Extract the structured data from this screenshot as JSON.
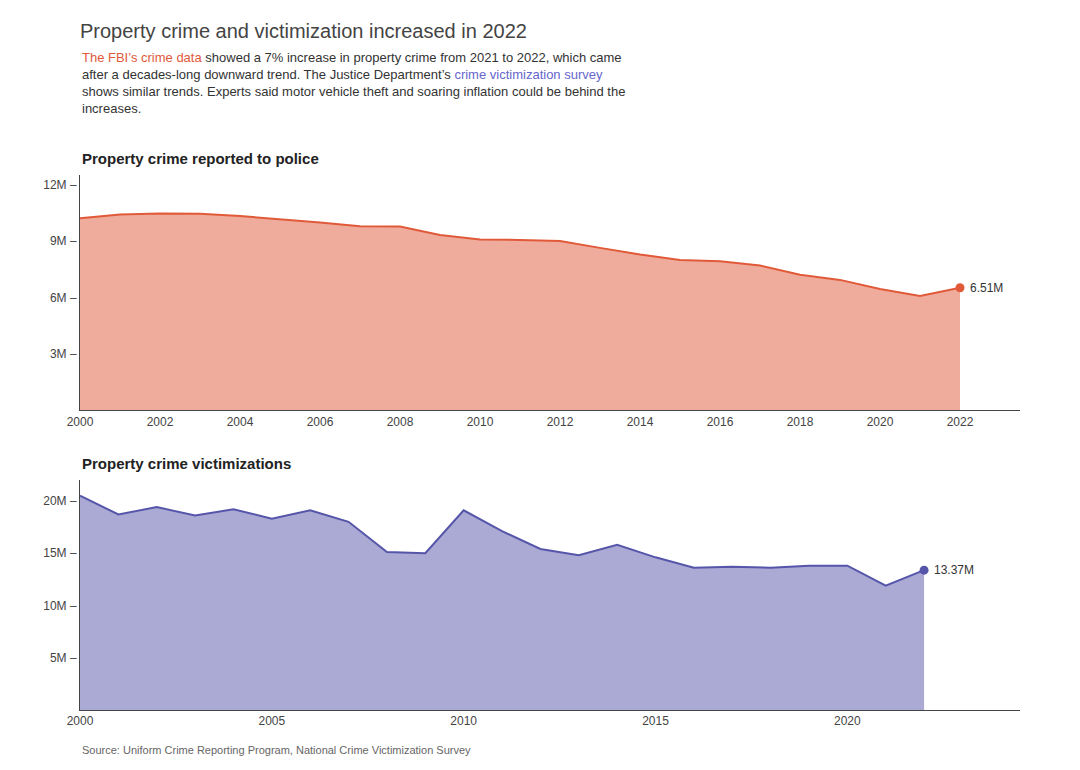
{
  "title": "Property crime and victimization increased in 2022",
  "subtitle": [
    {
      "text": "The FBI’s crime data",
      "color": "#e05a3a"
    },
    {
      "text": " showed a 7% increase in property crime from 2021 to 2022, which came\nafter a decades-long downward trend. The Justice Department’s ",
      "color": "#333333"
    },
    {
      "text": "crime victimization survey",
      "color": "#6666cc"
    },
    {
      "text": "\nshows similar trends. Experts said motor vehicle theft and soaring inflation could be behind the\nincreases.",
      "color": "#333333"
    }
  ],
  "source": "Source: Uniform Crime Reporting Program, National Crime Victimization Survey",
  "chart_data": [
    {
      "type": "area",
      "title": "Property crime reported to police",
      "x": [
        2000,
        2001,
        2002,
        2003,
        2004,
        2005,
        2006,
        2007,
        2008,
        2009,
        2010,
        2011,
        2012,
        2013,
        2014,
        2015,
        2016,
        2017,
        2018,
        2019,
        2020,
        2021,
        2022
      ],
      "values": [
        10.2,
        10.4,
        10.45,
        10.44,
        10.32,
        10.17,
        9.98,
        9.78,
        9.77,
        9.32,
        9.08,
        9.05,
        9.0,
        8.63,
        8.28,
        7.99,
        7.92,
        7.69,
        7.2,
        6.93,
        6.45,
        6.08,
        6.51
      ],
      "value_labels": [
        null,
        null,
        null,
        null,
        null,
        null,
        null,
        null,
        null,
        null,
        null,
        null,
        null,
        null,
        null,
        null,
        null,
        null,
        null,
        null,
        null,
        null,
        "6.51M"
      ],
      "color": "#e05a3a",
      "xlim": [
        2000,
        2023.5
      ],
      "xticks": [
        2000,
        2002,
        2004,
        2006,
        2008,
        2010,
        2012,
        2014,
        2016,
        2018,
        2020,
        2022
      ],
      "ylim": [
        0,
        12.5
      ],
      "yticks": [
        {
          "value": 3,
          "label": "3M –"
        },
        {
          "value": 6,
          "label": "6M –"
        },
        {
          "value": 9,
          "label": "9M –"
        },
        {
          "value": 12,
          "label": "12M –"
        }
      ],
      "grid": false
    },
    {
      "type": "area",
      "title": "Property crime victimizations",
      "x": [
        2000,
        2001,
        2002,
        2003,
        2004,
        2005,
        2006,
        2007,
        2008,
        2009,
        2010,
        2011,
        2012,
        2013,
        2014,
        2015,
        2016,
        2017,
        2018,
        2019,
        2020,
        2021,
        2022
      ],
      "values": [
        20.5,
        18.7,
        19.4,
        18.6,
        19.2,
        18.3,
        19.1,
        18.0,
        15.1,
        15.0,
        19.1,
        17.1,
        15.4,
        14.8,
        15.8,
        14.6,
        13.6,
        13.7,
        13.6,
        13.8,
        13.8,
        11.9,
        13.37
      ],
      "value_labels": [
        null,
        null,
        null,
        null,
        null,
        null,
        null,
        null,
        null,
        null,
        null,
        null,
        null,
        null,
        null,
        null,
        null,
        null,
        null,
        null,
        null,
        null,
        "13.37M"
      ],
      "color": "#5555aa",
      "xlim": [
        2000,
        2024.5
      ],
      "xticks": [
        2000,
        2005,
        2010,
        2015,
        2020
      ],
      "ylim": [
        0,
        22
      ],
      "yticks": [
        {
          "value": 5,
          "label": "5M –"
        },
        {
          "value": 10,
          "label": "10M –"
        },
        {
          "value": 15,
          "label": "15M –"
        },
        {
          "value": 20,
          "label": "20M –"
        }
      ],
      "grid": false
    }
  ]
}
